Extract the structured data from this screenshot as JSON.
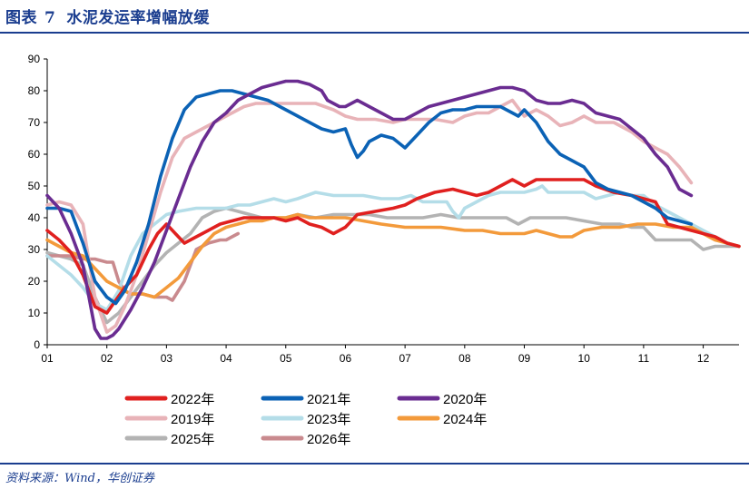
{
  "header": {
    "figure_label": "图表",
    "figure_number": "7",
    "title": "水泥发运率增幅放缓"
  },
  "footer": {
    "source": "资料来源：Wind，华创证券"
  },
  "chart_data": {
    "type": "line",
    "title": "水泥发运率增幅放缓",
    "xlabel": "",
    "ylabel": "",
    "ylim": [
      0,
      90
    ],
    "xlim": [
      1,
      12.6
    ],
    "yticks": [
      0,
      10,
      20,
      30,
      40,
      50,
      60,
      70,
      80,
      90
    ],
    "xticks": [
      {
        "value": 1,
        "label": "01"
      },
      {
        "value": 2,
        "label": "02"
      },
      {
        "value": 3,
        "label": "03"
      },
      {
        "value": 4,
        "label": "04"
      },
      {
        "value": 5,
        "label": "05"
      },
      {
        "value": 6,
        "label": "06"
      },
      {
        "value": 7,
        "label": "07"
      },
      {
        "value": 8,
        "label": "08"
      },
      {
        "value": 9,
        "label": "09"
      },
      {
        "value": 10,
        "label": "10"
      },
      {
        "value": 11,
        "label": "11"
      },
      {
        "value": 12,
        "label": "12"
      }
    ],
    "grid": false,
    "legend_position": "bottom",
    "series": [
      {
        "name": "2022年",
        "color": "#e0201f",
        "x": [
          1.0,
          1.2,
          1.4,
          1.6,
          1.8,
          2.0,
          2.15,
          2.3,
          2.5,
          2.7,
          2.85,
          3.0,
          3.15,
          3.3,
          3.5,
          3.7,
          3.9,
          4.1,
          4.3,
          4.5,
          4.8,
          5.0,
          5.2,
          5.4,
          5.6,
          5.8,
          6.0,
          6.2,
          6.5,
          6.8,
          7.0,
          7.2,
          7.5,
          7.8,
          8.0,
          8.2,
          8.4,
          8.6,
          8.8,
          9.0,
          9.2,
          9.4,
          9.6,
          9.8,
          10.0,
          10.2,
          10.5,
          10.8,
          11.0,
          11.2,
          11.4,
          11.6,
          11.8,
          12.0,
          12.2,
          12.4,
          12.6
        ],
        "y": [
          36,
          33,
          29,
          22,
          12,
          10,
          14,
          18,
          22,
          30,
          35,
          38,
          35,
          32,
          34,
          36,
          38,
          39,
          40,
          40,
          40,
          39,
          40,
          38,
          37,
          35,
          37,
          41,
          42,
          43,
          44,
          46,
          48,
          49,
          48,
          47,
          48,
          50,
          52,
          50,
          52,
          52,
          52,
          52,
          52,
          50,
          48,
          47,
          46,
          45,
          38,
          37,
          36,
          35,
          34,
          32,
          31
        ]
      },
      {
        "name": "2021年",
        "color": "#0b62b5",
        "x": [
          1.0,
          1.2,
          1.4,
          1.6,
          1.8,
          2.0,
          2.15,
          2.3,
          2.5,
          2.7,
          2.9,
          3.1,
          3.3,
          3.5,
          3.7,
          3.9,
          4.1,
          4.3,
          4.5,
          4.7,
          5.0,
          5.2,
          5.4,
          5.6,
          5.8,
          6.0,
          6.1,
          6.2,
          6.3,
          6.4,
          6.6,
          6.8,
          7.0,
          7.2,
          7.4,
          7.6,
          7.8,
          8.0,
          8.2,
          8.4,
          8.6,
          8.8,
          8.9,
          9.0,
          9.2,
          9.4,
          9.6,
          9.8,
          10.0,
          10.2,
          10.4,
          10.6,
          10.8,
          11.0,
          11.2,
          11.4,
          11.6,
          11.8
        ],
        "y": [
          43,
          43,
          42,
          32,
          20,
          15,
          13,
          17,
          26,
          38,
          53,
          65,
          74,
          78,
          79,
          80,
          80,
          79,
          78,
          77,
          74,
          72,
          70,
          68,
          67,
          68,
          63,
          59,
          61,
          64,
          66,
          65,
          62,
          66,
          70,
          73,
          74,
          74,
          75,
          75,
          75,
          73,
          72,
          74,
          70,
          64,
          60,
          58,
          56,
          51,
          49,
          48,
          47,
          45,
          43,
          40,
          39,
          38
        ]
      },
      {
        "name": "2020年",
        "color": "#6a2c91",
        "x": [
          1.0,
          1.2,
          1.4,
          1.6,
          1.8,
          1.9,
          2.0,
          2.1,
          2.2,
          2.4,
          2.6,
          2.8,
          3.0,
          3.2,
          3.4,
          3.6,
          3.8,
          4.0,
          4.2,
          4.4,
          4.6,
          4.8,
          5.0,
          5.2,
          5.4,
          5.6,
          5.7,
          5.8,
          5.9,
          6.0,
          6.2,
          6.4,
          6.6,
          6.8,
          7.0,
          7.2,
          7.4,
          7.6,
          7.8,
          8.0,
          8.2,
          8.4,
          8.6,
          8.8,
          9.0,
          9.2,
          9.4,
          9.6,
          9.8,
          10.0,
          10.2,
          10.4,
          10.6,
          10.8,
          11.0,
          11.2,
          11.4,
          11.6,
          11.8
        ],
        "y": [
          47,
          43,
          35,
          25,
          5,
          2,
          2,
          3,
          5,
          11,
          18,
          26,
          36,
          46,
          56,
          64,
          70,
          73,
          77,
          79,
          81,
          82,
          83,
          83,
          82,
          80,
          77,
          76,
          75,
          75,
          77,
          75,
          73,
          71,
          71,
          73,
          75,
          76,
          77,
          78,
          79,
          80,
          81,
          81,
          80,
          77,
          76,
          76,
          77,
          76,
          73,
          72,
          71,
          68,
          65,
          60,
          56,
          49,
          47
        ]
      },
      {
        "name": "2019年",
        "color": "#e8b3b8",
        "x": [
          1.0,
          1.2,
          1.4,
          1.6,
          1.8,
          2.0,
          2.15,
          2.3,
          2.5,
          2.7,
          2.9,
          3.1,
          3.3,
          3.5,
          3.7,
          3.9,
          4.1,
          4.3,
          4.5,
          4.7,
          4.9,
          5.2,
          5.5,
          5.8,
          6.0,
          6.2,
          6.5,
          6.8,
          7.0,
          7.2,
          7.5,
          7.8,
          8.0,
          8.2,
          8.4,
          8.6,
          8.8,
          9.0,
          9.2,
          9.4,
          9.6,
          9.8,
          10.0,
          10.2,
          10.5,
          10.8,
          11.0,
          11.2,
          11.4,
          11.6,
          11.8
        ],
        "y": [
          44,
          45,
          44,
          38,
          15,
          4,
          6,
          12,
          22,
          35,
          48,
          59,
          65,
          67,
          69,
          71,
          73,
          75,
          76,
          76,
          76,
          76,
          76,
          74,
          72,
          71,
          71,
          70,
          71,
          71,
          71,
          70,
          72,
          73,
          73,
          75,
          77,
          72,
          74,
          72,
          69,
          70,
          72,
          70,
          70,
          67,
          64,
          62,
          60,
          56,
          51
        ]
      },
      {
        "name": "2023年",
        "color": "#b4dde8",
        "x": [
          1.0,
          1.2,
          1.4,
          1.6,
          1.8,
          2.0,
          2.2,
          2.4,
          2.6,
          2.8,
          3.0,
          3.2,
          3.5,
          3.8,
          4.0,
          4.2,
          4.4,
          4.6,
          4.8,
          5.0,
          5.2,
          5.5,
          5.8,
          6.0,
          6.3,
          6.6,
          6.9,
          7.1,
          7.3,
          7.5,
          7.7,
          7.8,
          7.9,
          8.0,
          8.2,
          8.4,
          8.6,
          8.8,
          9.0,
          9.2,
          9.3,
          9.4,
          9.6,
          9.8,
          10.0,
          10.2,
          10.4,
          10.6,
          10.8,
          11.0,
          11.2,
          11.4,
          11.6,
          11.8,
          12.0,
          12.2,
          12.4,
          12.6
        ],
        "y": [
          28,
          25,
          22,
          18,
          13,
          11,
          17,
          28,
          35,
          38,
          41,
          42,
          43,
          43,
          43,
          44,
          44,
          45,
          46,
          45,
          46,
          48,
          47,
          47,
          47,
          46,
          46,
          47,
          45,
          45,
          45,
          42,
          40,
          43,
          45,
          47,
          48,
          48,
          48,
          49,
          50,
          48,
          48,
          48,
          48,
          46,
          47,
          48,
          47,
          47,
          44,
          42,
          40,
          38,
          36,
          34,
          32,
          31
        ]
      },
      {
        "name": "2024年",
        "color": "#f39a3b",
        "x": [
          1.0,
          1.2,
          1.4,
          1.6,
          1.8,
          2.0,
          2.2,
          2.4,
          2.6,
          2.8,
          3.0,
          3.2,
          3.4,
          3.6,
          3.8,
          4.0,
          4.2,
          4.4,
          4.6,
          4.8,
          5.0,
          5.2,
          5.4,
          5.6,
          5.8,
          6.0,
          6.3,
          6.6,
          7.0,
          7.3,
          7.6,
          8.0,
          8.3,
          8.6,
          9.0,
          9.2,
          9.4,
          9.6,
          9.8,
          10.0,
          10.3,
          10.6,
          10.9,
          11.2,
          11.5,
          11.8,
          12.0,
          12.2,
          12.4,
          12.6
        ],
        "y": [
          33,
          31,
          29,
          28,
          24,
          20,
          18,
          16,
          16,
          15,
          18,
          21,
          26,
          31,
          35,
          37,
          38,
          39,
          39,
          40,
          40,
          41,
          40,
          40,
          40,
          40,
          39,
          38,
          37,
          37,
          37,
          36,
          36,
          35,
          35,
          36,
          35,
          34,
          34,
          36,
          37,
          37,
          38,
          38,
          37,
          37,
          35,
          33,
          32,
          31
        ]
      },
      {
        "name": "2025年",
        "color": "#b3b3b3",
        "x": [
          1.0,
          1.2,
          1.4,
          1.6,
          1.8,
          2.0,
          2.2,
          2.4,
          2.6,
          2.8,
          3.0,
          3.2,
          3.4,
          3.6,
          3.8,
          4.0,
          4.2,
          4.4,
          4.6,
          4.8,
          5.0,
          5.2,
          5.5,
          5.8,
          6.1,
          6.4,
          6.7,
          7.0,
          7.3,
          7.6,
          7.9,
          8.2,
          8.5,
          8.7,
          8.9,
          9.1,
          9.4,
          9.7,
          10.0,
          10.3,
          10.6,
          10.8,
          11.0,
          11.2,
          11.4,
          11.6,
          11.8,
          12.0,
          12.2,
          12.4,
          12.6
        ],
        "y": [
          29,
          28,
          27,
          25,
          15,
          7,
          10,
          15,
          20,
          25,
          29,
          32,
          35,
          40,
          42,
          43,
          42,
          41,
          40,
          40,
          40,
          41,
          40,
          41,
          41,
          41,
          40,
          40,
          40,
          41,
          40,
          40,
          40,
          40,
          38,
          40,
          40,
          40,
          39,
          38,
          38,
          37,
          37,
          33,
          33,
          33,
          33,
          30,
          31,
          31,
          31
        ]
      },
      {
        "name": "2026年",
        "color": "#c98a8e",
        "x": [
          1.0,
          1.2,
          1.4,
          1.6,
          1.8,
          2.0,
          2.1,
          2.2,
          2.3,
          2.4,
          2.6,
          2.8,
          3.0,
          3.1,
          3.3,
          3.5,
          3.7,
          3.9,
          4.0,
          4.1,
          4.2
        ],
        "y": [
          28,
          28,
          28,
          27,
          27,
          26,
          26,
          20,
          17,
          16,
          16,
          15,
          15,
          14,
          20,
          30,
          32,
          33,
          33,
          34,
          35
        ]
      }
    ]
  }
}
